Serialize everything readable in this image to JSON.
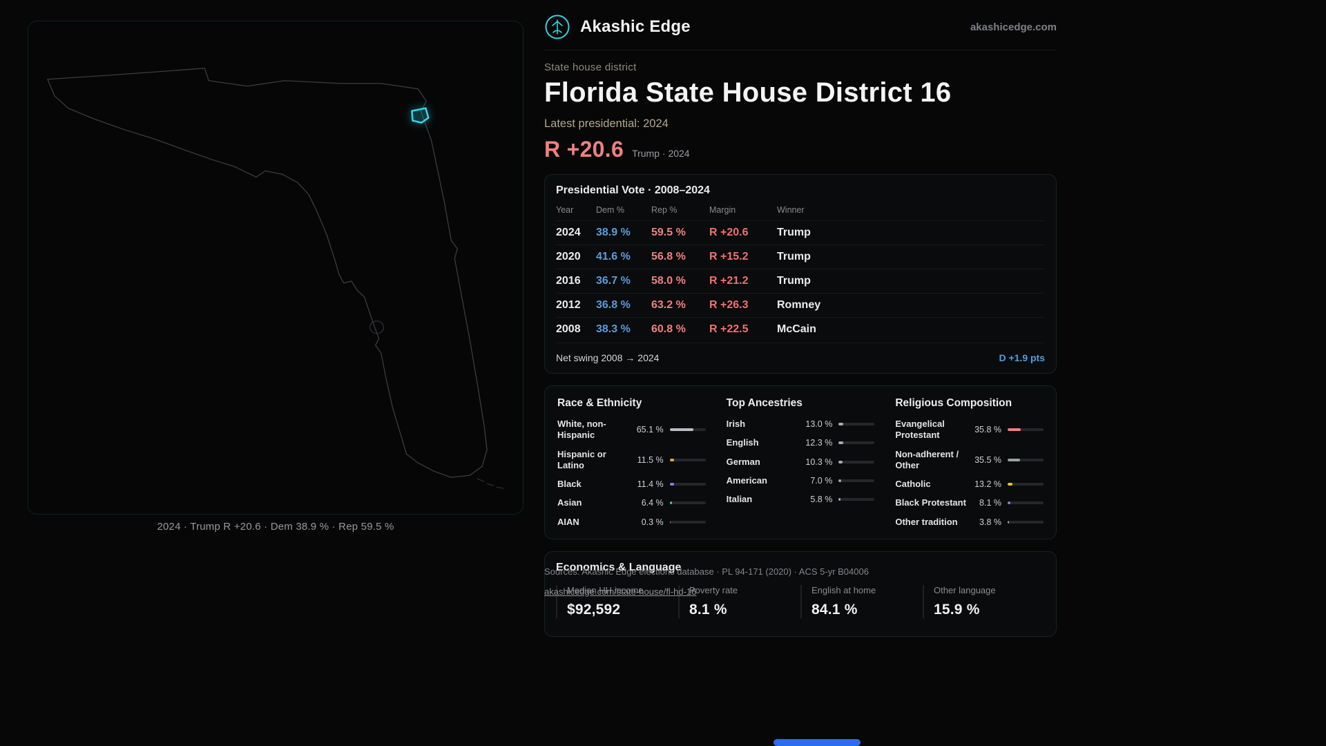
{
  "colors": {
    "accent": "#2fd6e8",
    "dem": "#5b9cdb",
    "rep": "#ef7272"
  },
  "header": {
    "brand": "Akashic Edge",
    "domain": "akashicedge.com"
  },
  "hero": {
    "kicker": "State house district",
    "title": "Florida State House District 16",
    "latest": "Latest presidential: 2024",
    "margin": "R +20.6",
    "margin_context": "Trump · 2024"
  },
  "map": {
    "caption": "2024 · Trump R +20.6 · Dem 38.9 % · Rep 59.5 %"
  },
  "presidential": {
    "title": "Presidential Vote · 2008–2024",
    "columns": [
      "Year",
      "Dem %",
      "Rep %",
      "Margin",
      "Winner"
    ],
    "rows": [
      {
        "year": "2024",
        "dem": "38.9 %",
        "rep": "59.5 %",
        "margin": "R +20.6",
        "winner": "Trump"
      },
      {
        "year": "2020",
        "dem": "41.6 %",
        "rep": "56.8 %",
        "margin": "R +15.2",
        "winner": "Trump"
      },
      {
        "year": "2016",
        "dem": "36.7 %",
        "rep": "58.0 %",
        "margin": "R +21.2",
        "winner": "Trump"
      },
      {
        "year": "2012",
        "dem": "36.8 %",
        "rep": "63.2 %",
        "margin": "R +26.3",
        "winner": "Romney"
      },
      {
        "year": "2008",
        "dem": "38.3 %",
        "rep": "60.8 %",
        "margin": "R +22.5",
        "winner": "McCain"
      }
    ],
    "net_swing_label": "Net swing 2008 → 2024",
    "net_swing_value": "D +1.9 pts"
  },
  "race": {
    "title": "Race & Ethnicity",
    "items": [
      {
        "label": "White, non-Hispanic",
        "pct": "65.1 %",
        "value": 65.1,
        "color": "#b9bdc6"
      },
      {
        "label": "Hispanic or Latino",
        "pct": "11.5 %",
        "value": 11.5,
        "color": "#e3a43a"
      },
      {
        "label": "Black",
        "pct": "11.4 %",
        "value": 11.4,
        "color": "#8d7bf2"
      },
      {
        "label": "Asian",
        "pct": "6.4 %",
        "value": 6.4,
        "color": "#3fcf9b"
      },
      {
        "label": "AIAN",
        "pct": "0.3 %",
        "value": 0.3,
        "color": "#e0654f"
      }
    ]
  },
  "ancestries": {
    "title": "Top Ancestries",
    "items": [
      {
        "label": "Irish",
        "pct": "13.0 %",
        "value": 13.0,
        "color": "#a7abb4"
      },
      {
        "label": "English",
        "pct": "12.3 %",
        "value": 12.3,
        "color": "#a7abb4"
      },
      {
        "label": "German",
        "pct": "10.3 %",
        "value": 10.3,
        "color": "#a7abb4"
      },
      {
        "label": "American",
        "pct": "7.0 %",
        "value": 7.0,
        "color": "#a7abb4"
      },
      {
        "label": "Italian",
        "pct": "5.8 %",
        "value": 5.8,
        "color": "#a7abb4"
      }
    ]
  },
  "religion": {
    "title": "Religious Composition",
    "items": [
      {
        "label": "Evangelical Protestant",
        "pct": "35.8 %",
        "value": 35.8,
        "color": "#ef7f7f"
      },
      {
        "label": "Non-adherent / Other",
        "pct": "35.5 %",
        "value": 35.5,
        "color": "#9ba0a9"
      },
      {
        "label": "Catholic",
        "pct": "13.2 %",
        "value": 13.2,
        "color": "#e6c23c"
      },
      {
        "label": "Black Protestant",
        "pct": "8.1 %",
        "value": 8.1,
        "color": "#8d7bf2"
      },
      {
        "label": "Other tradition",
        "pct": "3.8 %",
        "value": 3.8,
        "color": "#9ba0a9"
      }
    ]
  },
  "economics": {
    "title": "Economics & Language",
    "stats": [
      {
        "label": "Median HH income",
        "value": "$92,592"
      },
      {
        "label": "Poverty rate",
        "value": "8.1 %"
      },
      {
        "label": "English at home",
        "value": "84.1 %"
      },
      {
        "label": "Other language",
        "value": "15.9 %"
      }
    ]
  },
  "footer": {
    "sources": "Sources: Akashic Edge elections database · PL 94-171 (2020) · ACS 5-yr B04006",
    "link": "akashicedge.com/state-house/fl-hd-16"
  }
}
